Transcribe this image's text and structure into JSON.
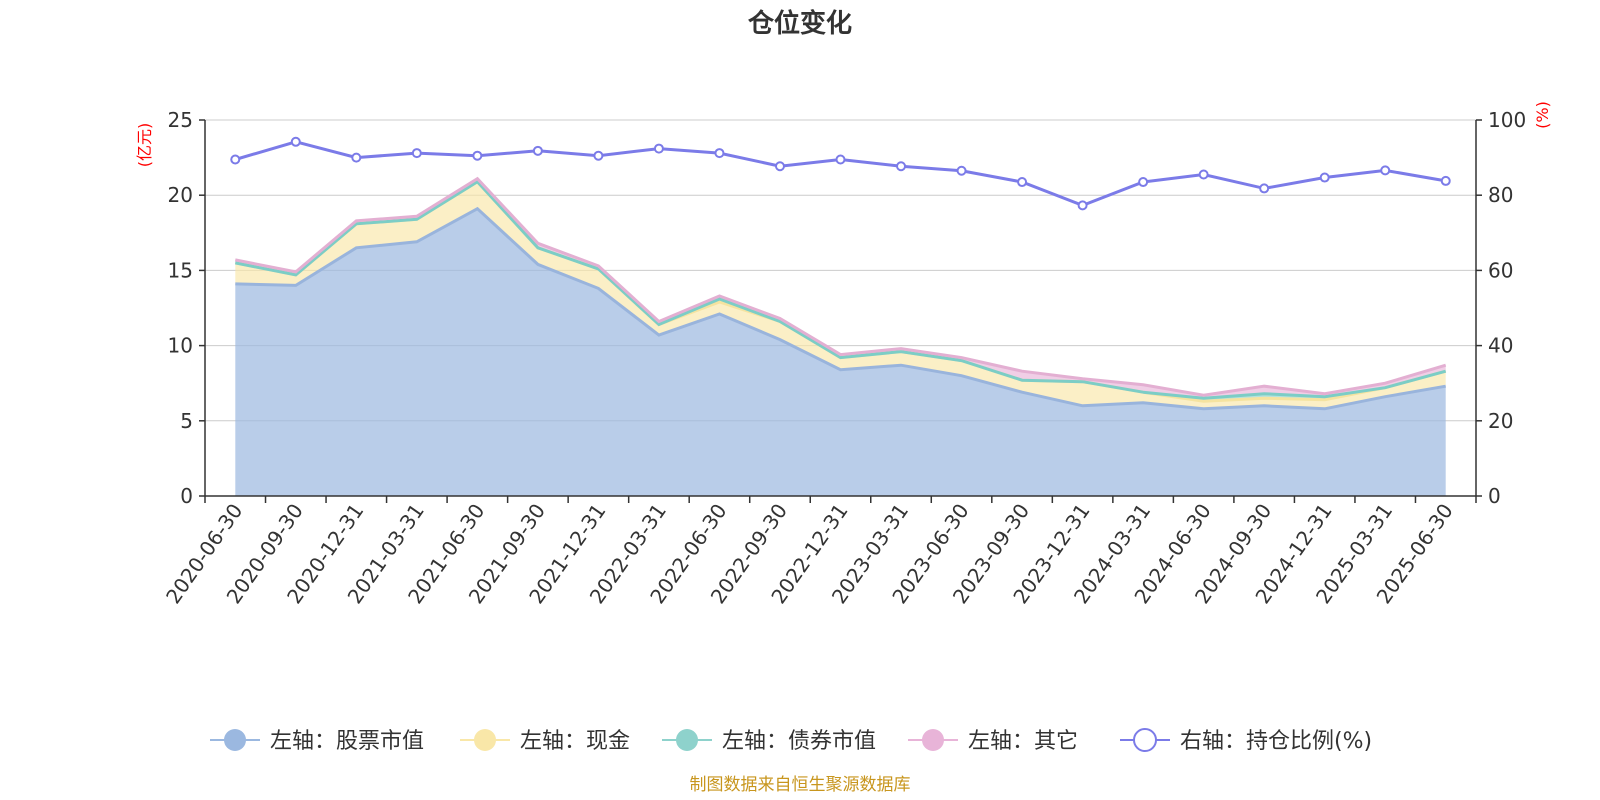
{
  "chart_data": {
    "type": "area",
    "title": "仓位变化",
    "left_axis_unit": "(亿元)",
    "right_axis_unit": "(%)",
    "left_ylim": [
      0,
      25
    ],
    "right_ylim": [
      0,
      100
    ],
    "left_ticks": [
      0,
      5,
      10,
      15,
      20,
      25
    ],
    "right_ticks": [
      0,
      20,
      40,
      60,
      80,
      100
    ],
    "grid": true,
    "legend_position": "bottom",
    "categories": [
      "2020-06-30",
      "2020-09-30",
      "2020-12-31",
      "2021-03-31",
      "2021-06-30",
      "2021-09-30",
      "2021-12-31",
      "2022-03-31",
      "2022-06-30",
      "2022-09-30",
      "2022-12-31",
      "2023-03-31",
      "2023-06-30",
      "2023-09-30",
      "2023-12-31",
      "2024-03-31",
      "2024-06-30",
      "2024-09-30",
      "2024-12-31",
      "2025-03-31",
      "2025-06-30"
    ],
    "series": [
      {
        "name": "左轴：股票市值",
        "axis": "left",
        "kind": "stacked-area",
        "color": "#9bb8e0",
        "values": [
          14.1,
          14.0,
          16.5,
          16.9,
          19.1,
          15.4,
          13.8,
          10.7,
          12.1,
          10.4,
          8.4,
          8.7,
          8.0,
          6.9,
          6.0,
          6.2,
          5.8,
          6.0,
          5.8,
          6.6,
          7.3
        ]
      },
      {
        "name": "左轴：现金",
        "axis": "left",
        "kind": "stacked-area",
        "color": "#f9e7a8",
        "values": [
          1.4,
          0.7,
          1.6,
          1.5,
          1.8,
          1.1,
          1.3,
          0.7,
          0.8,
          1.2,
          0.8,
          0.9,
          1.0,
          0.8,
          1.6,
          0.7,
          0.5,
          0.5,
          0.6,
          0.6,
          1.0
        ]
      },
      {
        "name": "左轴：债券市值",
        "axis": "left",
        "kind": "stacked-area",
        "color": "#8ed2cc",
        "values": [
          0,
          0,
          0,
          0,
          0,
          0,
          0,
          0,
          0.2,
          0,
          0,
          0,
          0,
          0,
          0,
          0,
          0.2,
          0.3,
          0.2,
          0,
          0
        ]
      },
      {
        "name": "左轴：其它",
        "axis": "left",
        "kind": "stacked-area",
        "color": "#e8b4d8",
        "values": [
          0.2,
          0.2,
          0.2,
          0.2,
          0.2,
          0.3,
          0.2,
          0.2,
          0.2,
          0.2,
          0.2,
          0.2,
          0.2,
          0.6,
          0.2,
          0.5,
          0.2,
          0.5,
          0.2,
          0.3,
          0.4
        ]
      },
      {
        "name": "右轴：持仓比例(%)",
        "axis": "right",
        "kind": "line",
        "color": "#7b7be8",
        "values": [
          89.5,
          94.2,
          90.0,
          91.2,
          90.5,
          91.8,
          90.5,
          92.4,
          91.2,
          87.7,
          89.5,
          87.7,
          86.5,
          83.5,
          77.3,
          83.5,
          85.5,
          81.8,
          84.7,
          86.6,
          83.8
        ]
      }
    ],
    "colors": {
      "axis": "#333333",
      "grid": "#cccccc",
      "unit": "#ff0000",
      "source": "#c8961e",
      "stock_line": "#99b4dc",
      "cash_line": "#f5e3a0",
      "bond_line": "#7ccdc6",
      "other_line": "#e3afd2"
    }
  },
  "source_text": "制图数据来自恒生聚源数据库"
}
